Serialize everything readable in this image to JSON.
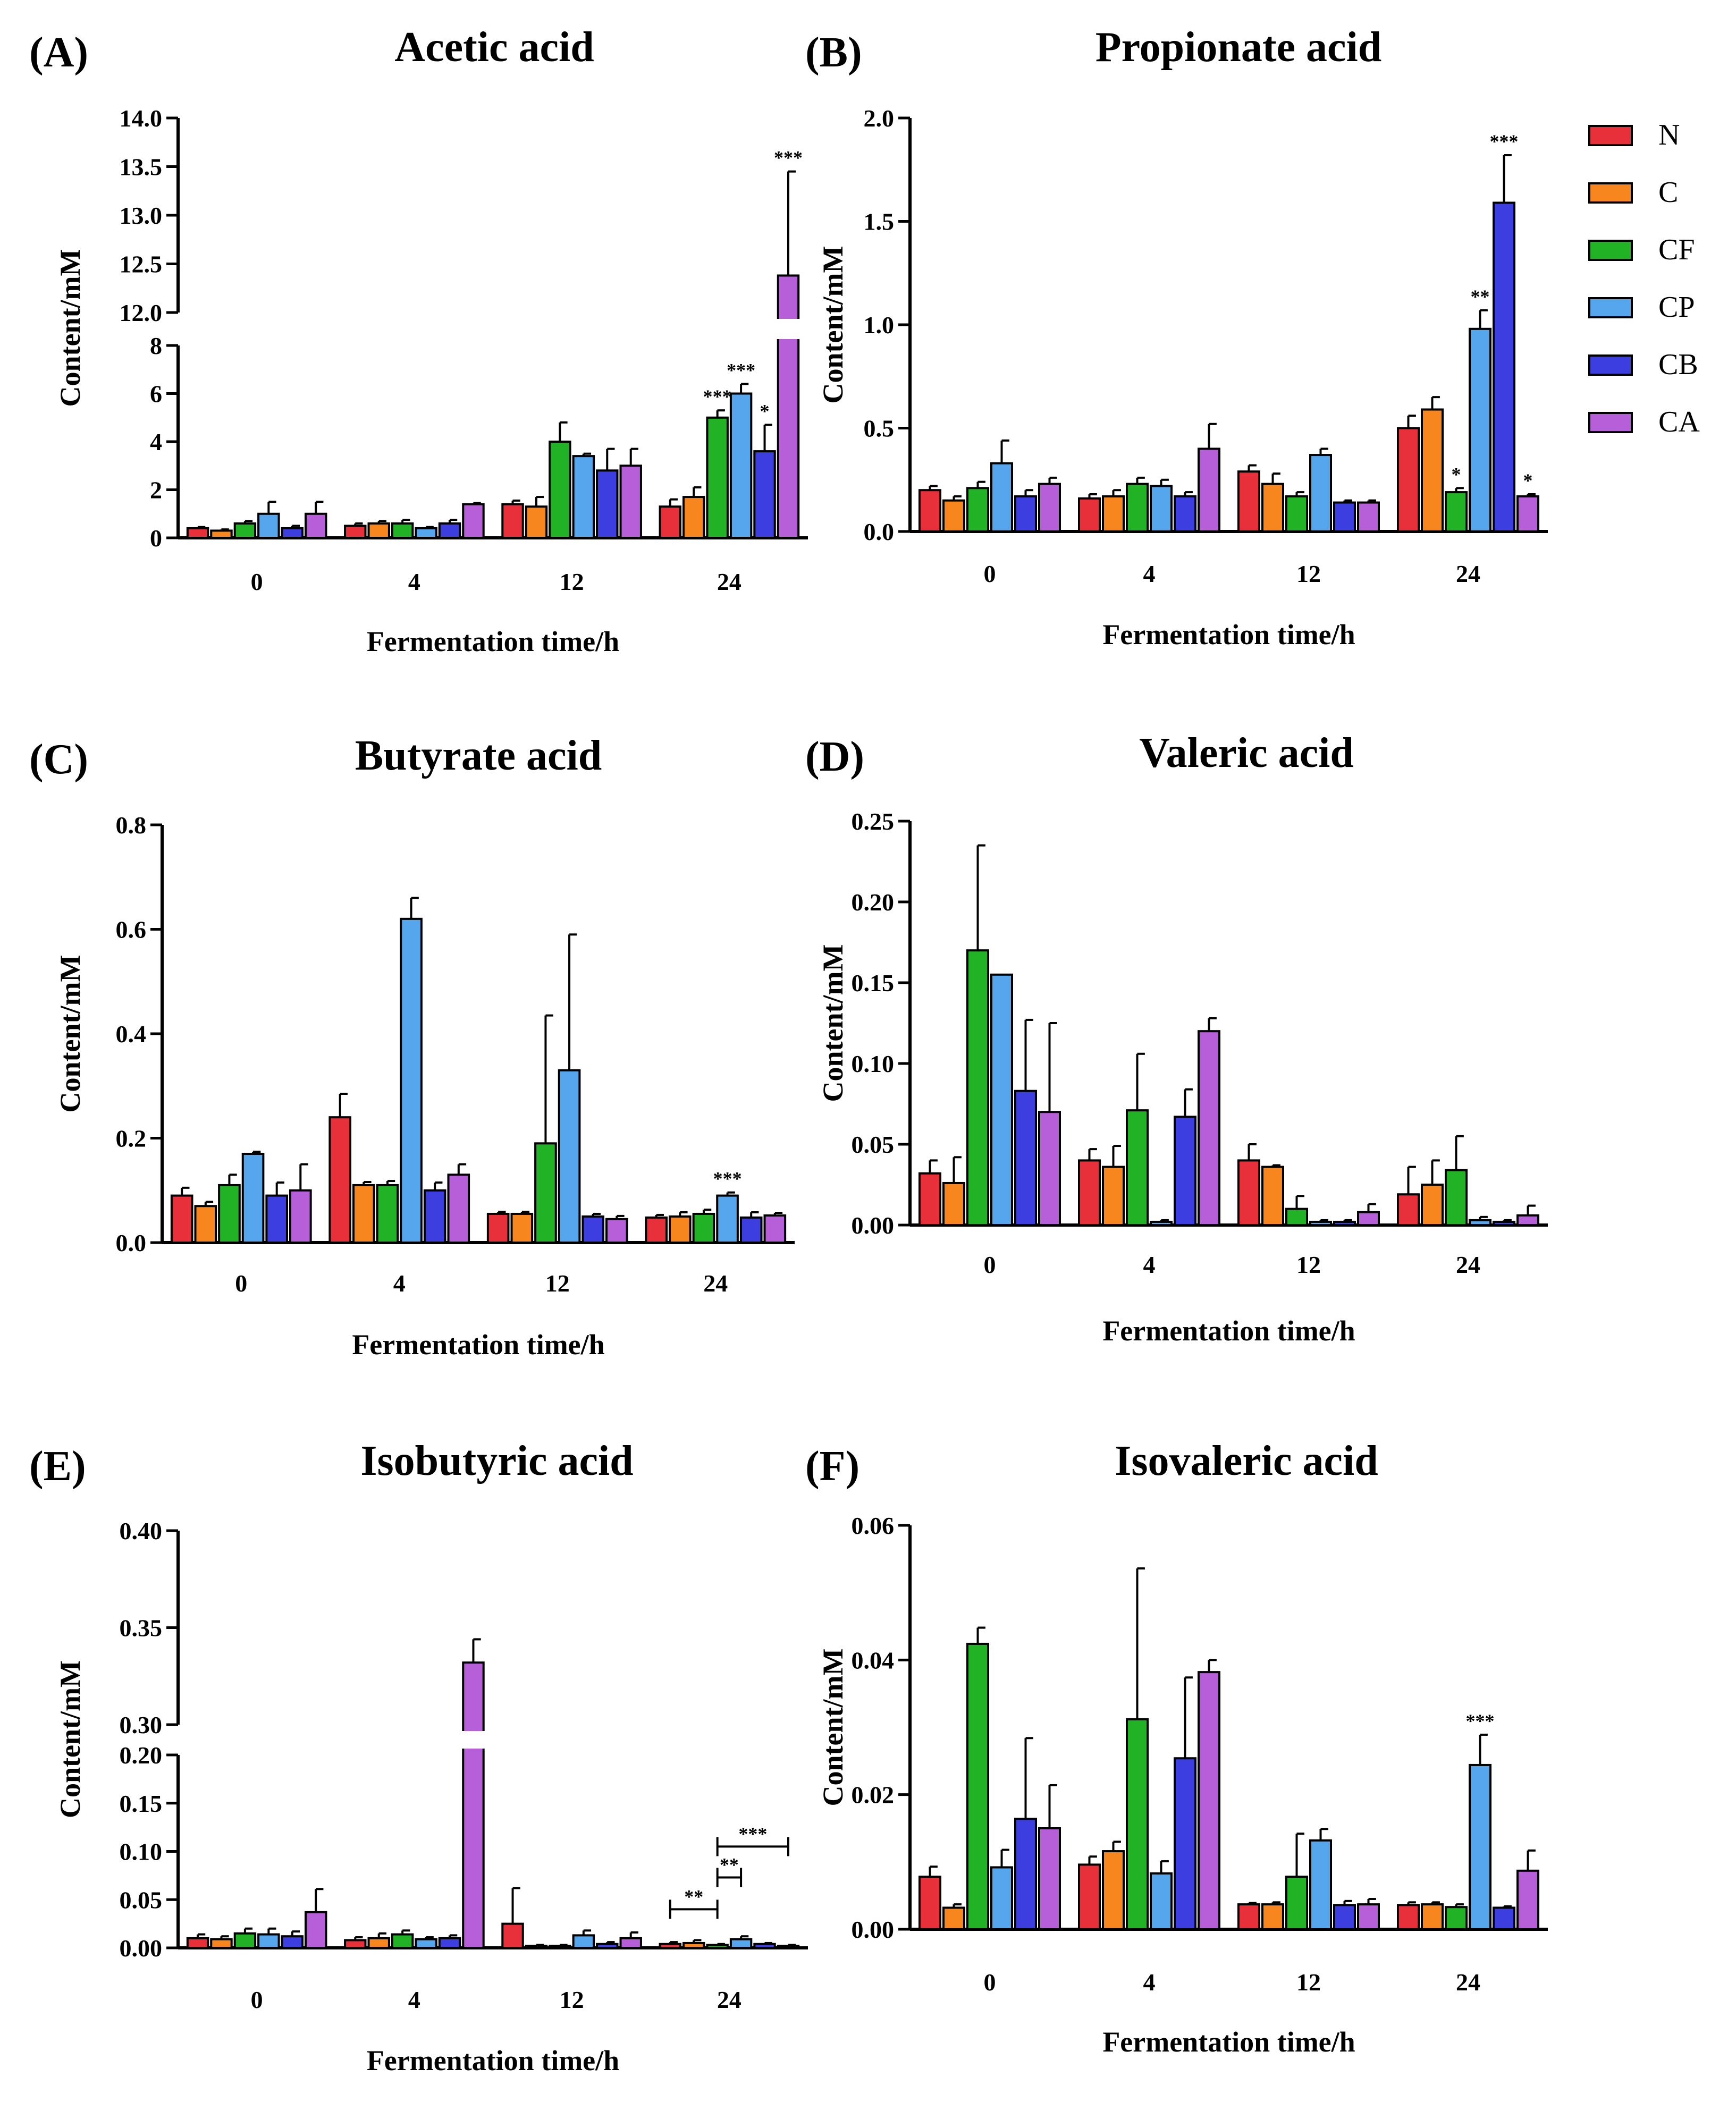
{
  "figure": {
    "legend": {
      "entries": [
        {
          "label": "N",
          "color": "#e8303a"
        },
        {
          "label": "C",
          "color": "#f7861e"
        },
        {
          "label": "CF",
          "color": "#22b226"
        },
        {
          "label": "CP",
          "color": "#56a6ee"
        },
        {
          "label": "CB",
          "color": "#3c3ee0"
        },
        {
          "label": "CA",
          "color": "#b75ed9"
        }
      ]
    }
  },
  "chart_data": [
    {
      "type": "bar",
      "letter": "(A)",
      "title": "Acetic acid",
      "xlabel": "Fermentation time/h",
      "ylabel": "Content/mM",
      "categories": [
        "0",
        "4",
        "12",
        "24"
      ],
      "series_names": [
        "N",
        "C",
        "CF",
        "CP",
        "CB",
        "CA"
      ],
      "axis_break": {
        "lower": [
          0,
          8
        ],
        "upper": [
          12,
          14
        ]
      },
      "lower_ticks": [
        "0",
        "2",
        "4",
        "6",
        "8"
      ],
      "upper_ticks": [
        "12.0",
        "12.5",
        "13.0",
        "13.5",
        "14.0"
      ],
      "values": [
        [
          0.4,
          0.3,
          0.6,
          1.0,
          0.4,
          1.0
        ],
        [
          0.5,
          0.6,
          0.6,
          0.4,
          0.6,
          1.4
        ],
        [
          1.4,
          1.3,
          4.0,
          3.4,
          2.8,
          3.0
        ],
        [
          1.3,
          1.7,
          5.0,
          6.0,
          3.6,
          12.38
        ]
      ],
      "errors": [
        [
          0.05,
          0.05,
          0.1,
          0.5,
          0.1,
          0.5
        ],
        [
          0.1,
          0.1,
          0.15,
          0.05,
          0.15,
          0.05
        ],
        [
          0.15,
          0.4,
          0.8,
          0.1,
          0.9,
          0.7
        ],
        [
          0.3,
          0.4,
          0.3,
          0.4,
          1.1,
          1.07
        ]
      ],
      "annotations": [
        {
          "group": 3,
          "series": 2,
          "text": "***"
        },
        {
          "group": 3,
          "series": 3,
          "text": "***"
        },
        {
          "group": 3,
          "series": 4,
          "text": "*"
        },
        {
          "group": 3,
          "series": 5,
          "text": "***"
        }
      ]
    },
    {
      "type": "bar",
      "letter": "(B)",
      "title": "Propionate acid",
      "xlabel": "Fermentation time/h",
      "ylabel": "Content/mM",
      "categories": [
        "0",
        "4",
        "12",
        "24"
      ],
      "series_names": [
        "N",
        "C",
        "CF",
        "CP",
        "CB",
        "CA"
      ],
      "ylim": [
        0,
        2.0
      ],
      "yticks": [
        "0.0",
        "0.5",
        "1.0",
        "1.5",
        "2.0"
      ],
      "values": [
        [
          0.2,
          0.15,
          0.21,
          0.33,
          0.17,
          0.23
        ],
        [
          0.16,
          0.17,
          0.23,
          0.22,
          0.17,
          0.4
        ],
        [
          0.29,
          0.23,
          0.17,
          0.37,
          0.14,
          0.14
        ],
        [
          0.5,
          0.59,
          0.19,
          0.98,
          1.59,
          0.17
        ]
      ],
      "errors": [
        [
          0.02,
          0.02,
          0.03,
          0.11,
          0.03,
          0.03
        ],
        [
          0.02,
          0.03,
          0.03,
          0.03,
          0.02,
          0.12
        ],
        [
          0.03,
          0.05,
          0.02,
          0.03,
          0.01,
          0.01
        ],
        [
          0.06,
          0.06,
          0.02,
          0.09,
          0.23,
          0.01
        ]
      ],
      "annotations": [
        {
          "group": 3,
          "series": 2,
          "text": "*"
        },
        {
          "group": 3,
          "series": 3,
          "text": "**"
        },
        {
          "group": 3,
          "series": 4,
          "text": "***"
        },
        {
          "group": 3,
          "series": 5,
          "text": "*"
        }
      ]
    },
    {
      "type": "bar",
      "letter": "(C)",
      "title": "Butyrate acid",
      "xlabel": "Fermentation time/h",
      "ylabel": "Content/mM",
      "categories": [
        "0",
        "4",
        "12",
        "24"
      ],
      "series_names": [
        "N",
        "C",
        "CF",
        "CP",
        "CB",
        "CA"
      ],
      "ylim": [
        0,
        0.8
      ],
      "yticks": [
        "0.0",
        "0.2",
        "0.4",
        "0.6",
        "0.8"
      ],
      "values": [
        [
          0.09,
          0.07,
          0.11,
          0.17,
          0.09,
          0.1
        ],
        [
          0.24,
          0.11,
          0.11,
          0.62,
          0.1,
          0.13
        ],
        [
          0.055,
          0.055,
          0.19,
          0.33,
          0.05,
          0.045
        ],
        [
          0.048,
          0.05,
          0.055,
          0.09,
          0.048,
          0.052
        ]
      ],
      "errors": [
        [
          0.015,
          0.008,
          0.02,
          0.004,
          0.025,
          0.05
        ],
        [
          0.045,
          0.006,
          0.008,
          0.04,
          0.015,
          0.02
        ],
        [
          0.004,
          0.004,
          0.245,
          0.26,
          0.005,
          0.006
        ],
        [
          0.005,
          0.008,
          0.008,
          0.006,
          0.01,
          0.005
        ]
      ],
      "annotations": [
        {
          "group": 3,
          "series": 3,
          "text": "***"
        }
      ]
    },
    {
      "type": "bar",
      "letter": "(D)",
      "title": "Valeric acid",
      "xlabel": "Fermentation time/h",
      "ylabel": "Content/mM",
      "categories": [
        "0",
        "4",
        "12",
        "24"
      ],
      "series_names": [
        "N",
        "C",
        "CF",
        "CP",
        "CB",
        "CA"
      ],
      "ylim": [
        0,
        0.25
      ],
      "yticks": [
        "0.00",
        "0.05",
        "0.10",
        "0.15",
        "0.20",
        "0.25"
      ],
      "values": [
        [
          0.032,
          0.026,
          0.17,
          0.155,
          0.083,
          0.07
        ],
        [
          0.04,
          0.036,
          0.071,
          0.002,
          0.067,
          0.12
        ],
        [
          0.04,
          0.036,
          0.01,
          0.002,
          0.002,
          0.008
        ],
        [
          0.019,
          0.025,
          0.034,
          0.003,
          0.002,
          0.006
        ]
      ],
      "errors": [
        [
          0.008,
          0.016,
          0.065,
          0.0,
          0.044,
          0.055
        ],
        [
          0.007,
          0.013,
          0.035,
          0.001,
          0.017,
          0.008
        ],
        [
          0.01,
          0.001,
          0.008,
          0.001,
          0.001,
          0.005
        ],
        [
          0.017,
          0.015,
          0.021,
          0.002,
          0.001,
          0.006
        ]
      ],
      "annotations": []
    },
    {
      "type": "bar",
      "letter": "(E)",
      "title": "Isobutyric acid",
      "xlabel": "Fermentation time/h",
      "ylabel": "Content/mM",
      "categories": [
        "0",
        "4",
        "12",
        "24"
      ],
      "series_names": [
        "N",
        "C",
        "CF",
        "CP",
        "CB",
        "CA"
      ],
      "axis_break": {
        "lower": [
          0,
          0.2
        ],
        "upper": [
          0.3,
          0.4
        ]
      },
      "lower_ticks": [
        "0.00",
        "0.05",
        "0.10",
        "0.15",
        "0.20"
      ],
      "upper_ticks": [
        "0.30",
        "0.35",
        "0.40"
      ],
      "values": [
        [
          0.01,
          0.009,
          0.015,
          0.014,
          0.012,
          0.037
        ],
        [
          0.008,
          0.01,
          0.014,
          0.009,
          0.01,
          0.332
        ],
        [
          0.025,
          0.002,
          0.002,
          0.013,
          0.004,
          0.01
        ],
        [
          0.004,
          0.005,
          0.003,
          0.009,
          0.004,
          0.002
        ]
      ],
      "errors": [
        [
          0.004,
          0.003,
          0.005,
          0.006,
          0.005,
          0.024
        ],
        [
          0.003,
          0.005,
          0.004,
          0.002,
          0.003,
          0.012
        ],
        [
          0.037,
          0.001,
          0.001,
          0.005,
          0.002,
          0.006
        ],
        [
          0.002,
          0.003,
          0.001,
          0.003,
          0.001,
          0.001
        ]
      ],
      "annotations": [],
      "brackets": [
        {
          "group": 3,
          "from": 0,
          "to": 2,
          "level": 0.04,
          "text": "**"
        },
        {
          "group": 3,
          "from": 2,
          "to": 3,
          "level": 0.073,
          "text": "**"
        },
        {
          "group": 3,
          "from": 2,
          "to": 5,
          "level": 0.105,
          "text": "***"
        }
      ]
    },
    {
      "type": "bar",
      "letter": "(F)",
      "title": "Isovaleric acid",
      "xlabel": "Fermentation time/h",
      "ylabel": "Content/mM",
      "categories": [
        "0",
        "4",
        "12",
        "24"
      ],
      "series_names": [
        "N",
        "C",
        "CF",
        "CP",
        "CB",
        "CA"
      ],
      "ylim": [
        0,
        0.06
      ],
      "yticks": [
        "0.00",
        "0.02",
        "0.04",
        "0.06"
      ],
      "values": [
        [
          0.0078,
          0.0032,
          0.0424,
          0.0092,
          0.0164,
          0.015
        ],
        [
          0.0096,
          0.0116,
          0.0312,
          0.0083,
          0.0254,
          0.0382
        ],
        [
          0.0037,
          0.0037,
          0.0078,
          0.0132,
          0.0036,
          0.0037
        ],
        [
          0.0036,
          0.0037,
          0.0033,
          0.0244,
          0.0032,
          0.0087
        ]
      ],
      "errors": [
        [
          0.0015,
          0.0005,
          0.0024,
          0.0026,
          0.012,
          0.0064
        ],
        [
          0.0012,
          0.0014,
          0.0224,
          0.0018,
          0.012,
          0.0018
        ],
        [
          0.0002,
          0.0003,
          0.0064,
          0.0017,
          0.0006,
          0.0008
        ],
        [
          0.0004,
          0.0003,
          0.0004,
          0.0045,
          0.0002,
          0.003
        ]
      ],
      "annotations": [
        {
          "group": 3,
          "series": 3,
          "text": "***"
        }
      ]
    }
  ]
}
